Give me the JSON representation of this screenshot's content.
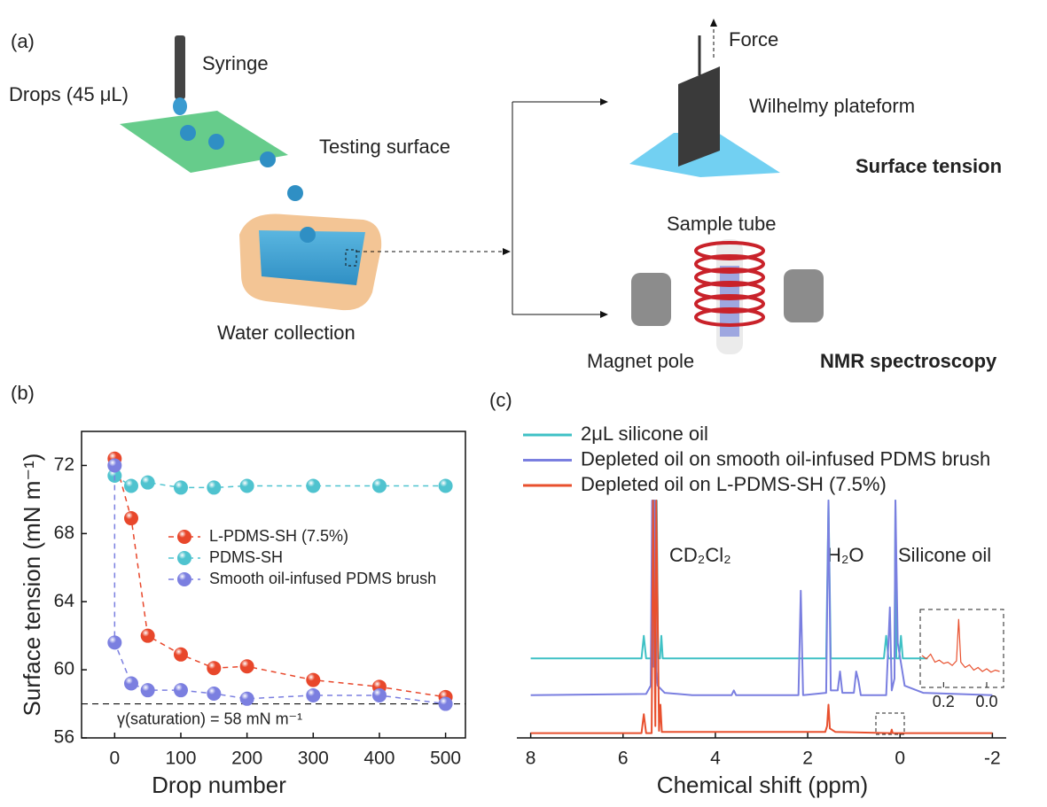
{
  "diagram": {
    "panel_label": "(a)",
    "syringe": "Syringe",
    "drops": "Drops (45 μL)",
    "testing_surface": "Testing surface",
    "water_collection": "Water collection",
    "force": "Force",
    "wilhelmy": "Wilhelmy plateform",
    "surface_tension": "Surface tension",
    "sample_tube": "Sample tube",
    "magnet_pole": "Magnet pole",
    "nmr": "NMR spectroscopy"
  },
  "chart_data": [
    {
      "type": "line",
      "panel_label": "(b)",
      "x_label": "Drop number",
      "y_label": "Surface tension (mN m⁻¹)",
      "xlim": [
        -50,
        530
      ],
      "xticks": [
        0,
        100,
        200,
        300,
        400,
        500
      ],
      "ylim": [
        56,
        74
      ],
      "yticks": [
        56,
        60,
        64,
        68,
        72
      ],
      "markers": true,
      "line_style": "dashed",
      "legend": "center-right",
      "series": [
        {
          "name": "L-PDMS-SH (7.5%)",
          "color": "#e8472b",
          "x": [
            0,
            25,
            50,
            100,
            150,
            200,
            300,
            400,
            500
          ],
          "values": [
            72.4,
            68.9,
            62.0,
            60.9,
            60.1,
            60.2,
            59.4,
            59.0,
            58.4
          ]
        },
        {
          "name": "PDMS-SH",
          "color": "#4fc3cf",
          "x": [
            0,
            25,
            50,
            100,
            150,
            200,
            300,
            400,
            500
          ],
          "values": [
            71.4,
            70.8,
            71.0,
            70.7,
            70.7,
            70.8,
            70.8,
            70.8,
            70.8
          ]
        },
        {
          "name": "Smooth oil-infused PDMS brush",
          "color": "#7b7fe0",
          "x": [
            0,
            0,
            25,
            50,
            100,
            150,
            200,
            300,
            400,
            500
          ],
          "values": [
            72.0,
            61.6,
            59.2,
            58.8,
            58.8,
            58.6,
            58.3,
            58.5,
            58.5,
            58.0
          ]
        }
      ],
      "annotation": {
        "text": "γ(saturation) = 58 mN m⁻¹",
        "y": 58
      }
    },
    {
      "type": "line",
      "panel_label": "(c)",
      "x_label": "Chemical shift (ppm)",
      "xlim": [
        8.3,
        -2.3
      ],
      "xticks": [
        8,
        6,
        4,
        2,
        0,
        -2
      ],
      "ylim": [
        0,
        100
      ],
      "legend": "top",
      "peak_labels": [
        "CD₂Cl₂",
        "H₂O",
        "Silicone oil"
      ],
      "series": [
        {
          "name": "2μL silicone oil",
          "color": "#3fc1c5",
          "x": [
            8,
            5.6,
            5.55,
            5.5,
            5.36,
            5.33,
            5.3,
            5.27,
            5.24,
            5.2,
            5.17,
            5.14,
            1.6,
            1.55,
            1.5,
            0.35,
            0.3,
            0.25,
            0.12,
            0.1,
            0.08,
            0.02,
            -0.02,
            -0.06,
            -0.6
          ],
          "values": [
            33.5,
            33.5,
            43,
            33.5,
            33.5,
            100,
            33.5,
            100,
            33.5,
            33.5,
            43,
            33.5,
            33.5,
            100,
            33.5,
            33.5,
            43,
            33.5,
            33.5,
            100,
            33.5,
            33.5,
            43,
            33.5,
            33.5
          ]
        },
        {
          "name": "Depleted oil on smooth oil-infused PDMS brush",
          "color": "#7a7fe0",
          "x": [
            8,
            5.5,
            5.4,
            5.37,
            5.34,
            5.31,
            5.28,
            5.25,
            5.1,
            4.5,
            3.65,
            3.6,
            3.55,
            2.5,
            2.2,
            2.15,
            2.1,
            1.6,
            1.55,
            1.5,
            1.35,
            1.3,
            1.25,
            1.0,
            0.95,
            0.9,
            0.85,
            0.3,
            0.22,
            0.18,
            0.12,
            0.1,
            0.05,
            -0.1,
            -0.5,
            -2
          ],
          "values": [
            18,
            18.5,
            22,
            100,
            30,
            100,
            28,
            22,
            19,
            18,
            18,
            20,
            18,
            18,
            18,
            62,
            18,
            19,
            100,
            20,
            20,
            28,
            19,
            19,
            28,
            24,
            18,
            18,
            55,
            20,
            25,
            100,
            40,
            22,
            19,
            18
          ]
        },
        {
          "name": "Depleted oil on L-PDMS-SH (7.5%)",
          "color": "#e8502e",
          "x": [
            8,
            5.6,
            5.55,
            5.5,
            5.38,
            5.35,
            5.3,
            5.28,
            5.22,
            5.19,
            5.16,
            1.62,
            1.58,
            1.55,
            1.52,
            1.4,
            0.2,
            0.18,
            0.16,
            -2
          ],
          "values": [
            2,
            2,
            10,
            2,
            2,
            100,
            5,
            100,
            3,
            14,
            2.5,
            2.5,
            5,
            14,
            4,
            2.5,
            2,
            3.5,
            2,
            2
          ]
        }
      ],
      "inset": {
        "xlim": [
          0.3,
          -0.07
        ],
        "xticks": [
          0.2,
          {
            "value": 0,
            "label": "0.0"
          }
        ],
        "ylim": [
          0,
          100
        ],
        "color": "#e8502e",
        "x": [
          0.3,
          0.28,
          0.26,
          0.24,
          0.22,
          0.2,
          0.18,
          0.16,
          0.14,
          0.13,
          0.12,
          0.1,
          0.08,
          0.06,
          0.04,
          0.02,
          0,
          -0.02,
          -0.04,
          -0.06
        ],
        "values": [
          40,
          35,
          42,
          30,
          33,
          28,
          30,
          25,
          32,
          95,
          30,
          22,
          26,
          18,
          22,
          16,
          20,
          15,
          18,
          16
        ]
      }
    }
  ]
}
